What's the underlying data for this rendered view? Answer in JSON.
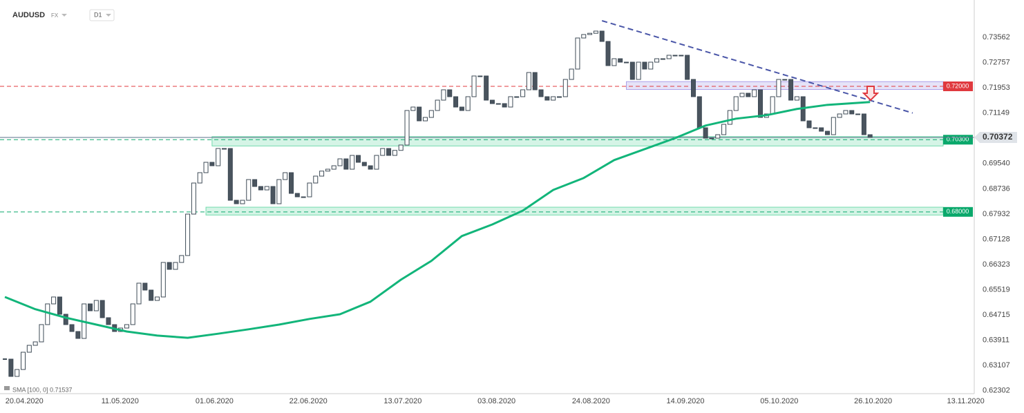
{
  "chart_data": {
    "type": "candlestick",
    "symbol": "AUDUSD",
    "market": "FX",
    "timeframe": "D1",
    "indicator_label": "SMA [100, 0] 0.71537",
    "xlim": [
      -0.8,
      159.1
    ],
    "ylim": [
      0.6221,
      0.7475
    ],
    "xticks": [
      {
        "value": 3.2,
        "label": "20.04.2020"
      },
      {
        "value": 18.9,
        "label": "11.05.2020"
      },
      {
        "value": 34.4,
        "label": "01.06.2020"
      },
      {
        "value": 49.8,
        "label": "22.06.2020"
      },
      {
        "value": 65.3,
        "label": "13.07.2020"
      },
      {
        "value": 80.7,
        "label": "03.08.2020"
      },
      {
        "value": 96.2,
        "label": "24.08.2020"
      },
      {
        "value": 111.7,
        "label": "14.09.2020"
      },
      {
        "value": 127.1,
        "label": "05.10.2020"
      },
      {
        "value": 142.5,
        "label": "26.10.2020"
      },
      {
        "value": 157.7,
        "label": "13.11.2020"
      }
    ],
    "yticks": [
      0.73562,
      0.72757,
      0.71953,
      0.71149,
      {
        "value": 0.6954,
        "label": "0.69540"
      },
      0.68736,
      0.67932,
      0.67128,
      0.66323,
      0.65519,
      0.64715,
      0.63911,
      0.63107,
      0.62302
    ],
    "up_color": "#ffffff",
    "down_color": "#4a545e",
    "edge_color": "#3d4a55",
    "close": [
      0.6331,
      0.6276,
      0.6298,
      0.6353,
      0.6375,
      0.6386,
      0.6441,
      0.6507,
      0.6529,
      0.6474,
      0.6441,
      0.6419,
      0.6397,
      0.6507,
      0.6485,
      0.6518,
      0.6463,
      0.6441,
      0.6419,
      0.643,
      0.6441,
      0.6507,
      0.6573,
      0.6551,
      0.6518,
      0.6529,
      0.6639,
      0.6617,
      0.6639,
      0.6661,
      0.6793,
      0.6892,
      0.6925,
      0.6958,
      0.6947,
      0.7002,
      0.7002,
      0.6837,
      0.6826,
      0.6837,
      0.6903,
      0.6881,
      0.687,
      0.6881,
      0.6826,
      0.6903,
      0.6925,
      0.6859,
      0.6848,
      0.6848,
      0.6892,
      0.6914,
      0.693,
      0.6936,
      0.6947,
      0.6969,
      0.6936,
      0.698,
      0.6958,
      0.6947,
      0.6936,
      0.698,
      0.7002,
      0.698,
      0.6996,
      0.7013,
      0.7123,
      0.7134,
      0.709,
      0.7101,
      0.7123,
      0.7156,
      0.7189,
      0.7167,
      0.7134,
      0.7123,
      0.7167,
      0.7233,
      0.7233,
      0.7156,
      0.7145,
      0.7145,
      0.7134,
      0.7167,
      0.7167,
      0.7189,
      0.7244,
      0.7189,
      0.7167,
      0.7156,
      0.7167,
      0.7167,
      0.7222,
      0.7255,
      0.7354,
      0.7365,
      0.7369,
      0.7376,
      0.7343,
      0.7266,
      0.7288,
      0.7277,
      0.7277,
      0.7222,
      0.7277,
      0.7255,
      0.7277,
      0.7288,
      0.7288,
      0.7299,
      0.7299,
      0.7299,
      0.7222,
      0.7167,
      0.7068,
      0.7035,
      0.7035,
      0.7046,
      0.7079,
      0.7123,
      0.7167,
      0.7178,
      0.7167,
      0.7189,
      0.7101,
      0.7112,
      0.7167,
      0.7222,
      0.7222,
      0.7156,
      0.7167,
      0.709,
      0.7068,
      0.7068,
      0.7057,
      0.7046,
      0.7101,
      0.7112,
      0.7123,
      0.7112,
      0.7112,
      0.7046,
      0.70372
    ],
    "sma": {
      "color": "#12b57a",
      "x": [
        0,
        5,
        10,
        15,
        20,
        25,
        30,
        35,
        40,
        45,
        50,
        55,
        60,
        65,
        70,
        75,
        80,
        85,
        90,
        95,
        100,
        105,
        110,
        115,
        120,
        125,
        130,
        135,
        142
      ],
      "values": [
        0.6529,
        0.649,
        0.6463,
        0.6441,
        0.6419,
        0.6406,
        0.6399,
        0.6412,
        0.6426,
        0.6441,
        0.6459,
        0.6474,
        0.6514,
        0.6584,
        0.6644,
        0.6723,
        0.676,
        0.6804,
        0.687,
        0.6908,
        0.6965,
        0.7,
        0.7035,
        0.7075,
        0.7097,
        0.7108,
        0.7128,
        0.7141,
        0.715
      ]
    },
    "zones": [
      {
        "range": [
          0.719,
          0.7215
        ],
        "x": [
          102,
          154
        ],
        "color": "#8e7fe0"
      },
      {
        "range": [
          0.701,
          0.704
        ],
        "x": [
          34,
          154
        ],
        "color": "#3fcf8e"
      },
      {
        "range": [
          0.679,
          0.6815
        ],
        "x": [
          33,
          154
        ],
        "color": "#3fcf8e"
      }
    ],
    "levels": [
      {
        "value": 0.72,
        "label": "0.72000",
        "color": "#e0393e"
      },
      {
        "value": 0.703,
        "label": "0.70300",
        "color": "#0aa86b"
      },
      {
        "value": 0.68,
        "label": "0.68000",
        "color": "#0aa86b"
      }
    ],
    "last_price": 0.70372,
    "trendline": {
      "x": [
        98,
        149
      ],
      "values": [
        0.7409,
        0.7115
      ],
      "color": "#4a56a8"
    }
  }
}
